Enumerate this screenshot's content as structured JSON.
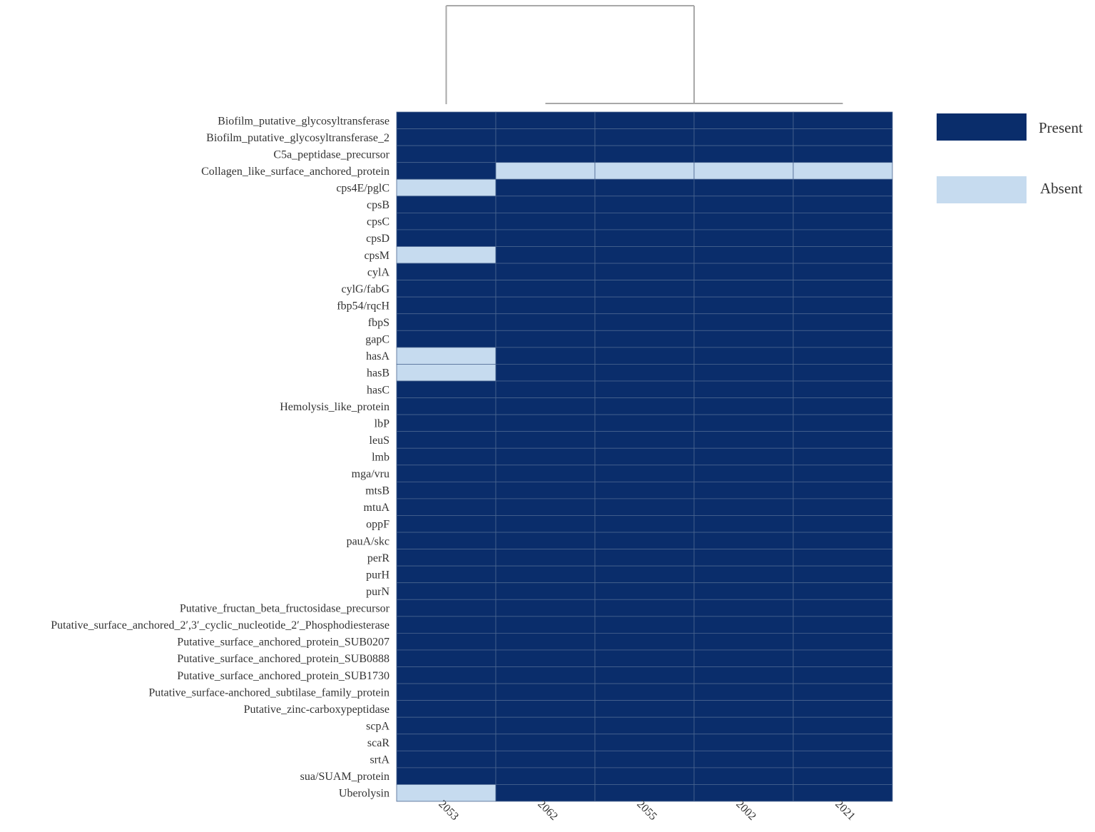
{
  "chart_data": {
    "type": "heatmap",
    "columns": [
      "2053",
      "2062",
      "2055",
      "2002",
      "2021"
    ],
    "rows": [
      "Biofilm_putative_glycosyltransferase",
      "Biofilm_putative_glycosyltransferase_2",
      "C5a_peptidase_precursor",
      "Collagen_like_surface_anchored_protein",
      "cps4E/pglC",
      "cpsB",
      "cpsC",
      "cpsD",
      "cpsM",
      "cylA",
      "cylG/fabG",
      "fbp54/rqcH",
      "fbpS",
      "gapC",
      "hasA",
      "hasB",
      "hasC",
      "Hemolysis_like_protein",
      "lbP",
      "leuS",
      "lmb",
      "mga/vru",
      "mtsB",
      "mtuA",
      "oppF",
      "pauA/skc",
      "perR",
      "purH",
      "purN",
      "Putative_fructan_beta_fructosidase_precursor",
      "Putative_surface_anchored_2′,3′_cyclic_nucleotide_2′_Phosphodiesterase",
      "Putative_surface_anchored_protein_SUB0207",
      "Putative_surface_anchored_protein_SUB0888",
      "Putative_surface_anchored_protein_SUB1730",
      "Putative_surface-anchored_subtilase_family_protein",
      "Putative_zinc-carboxypeptidase",
      "scpA",
      "scaR",
      "srtA",
      "sua/SUAM_protein",
      "Uberolysin"
    ],
    "values": [
      [
        1,
        1,
        1,
        1,
        1
      ],
      [
        1,
        1,
        1,
        1,
        1
      ],
      [
        1,
        1,
        1,
        1,
        1
      ],
      [
        1,
        0,
        0,
        0,
        0
      ],
      [
        0,
        1,
        1,
        1,
        1
      ],
      [
        1,
        1,
        1,
        1,
        1
      ],
      [
        1,
        1,
        1,
        1,
        1
      ],
      [
        1,
        1,
        1,
        1,
        1
      ],
      [
        0,
        1,
        1,
        1,
        1
      ],
      [
        1,
        1,
        1,
        1,
        1
      ],
      [
        1,
        1,
        1,
        1,
        1
      ],
      [
        1,
        1,
        1,
        1,
        1
      ],
      [
        1,
        1,
        1,
        1,
        1
      ],
      [
        1,
        1,
        1,
        1,
        1
      ],
      [
        0,
        1,
        1,
        1,
        1
      ],
      [
        0,
        1,
        1,
        1,
        1
      ],
      [
        1,
        1,
        1,
        1,
        1
      ],
      [
        1,
        1,
        1,
        1,
        1
      ],
      [
        1,
        1,
        1,
        1,
        1
      ],
      [
        1,
        1,
        1,
        1,
        1
      ],
      [
        1,
        1,
        1,
        1,
        1
      ],
      [
        1,
        1,
        1,
        1,
        1
      ],
      [
        1,
        1,
        1,
        1,
        1
      ],
      [
        1,
        1,
        1,
        1,
        1
      ],
      [
        1,
        1,
        1,
        1,
        1
      ],
      [
        1,
        1,
        1,
        1,
        1
      ],
      [
        1,
        1,
        1,
        1,
        1
      ],
      [
        1,
        1,
        1,
        1,
        1
      ],
      [
        1,
        1,
        1,
        1,
        1
      ],
      [
        1,
        1,
        1,
        1,
        1
      ],
      [
        1,
        1,
        1,
        1,
        1
      ],
      [
        1,
        1,
        1,
        1,
        1
      ],
      [
        1,
        1,
        1,
        1,
        1
      ],
      [
        1,
        1,
        1,
        1,
        1
      ],
      [
        1,
        1,
        1,
        1,
        1
      ],
      [
        1,
        1,
        1,
        1,
        1
      ],
      [
        1,
        1,
        1,
        1,
        1
      ],
      [
        1,
        1,
        1,
        1,
        1
      ],
      [
        1,
        1,
        1,
        1,
        1
      ],
      [
        1,
        1,
        1,
        1,
        1
      ],
      [
        0,
        1,
        1,
        1,
        1
      ]
    ],
    "legend": [
      {
        "label": "Present",
        "value": 1,
        "color": "#0a2d6b"
      },
      {
        "label": "Absent",
        "value": 0,
        "color": "#c6dbef"
      }
    ],
    "legend_position": "top-right",
    "column_dendrogram": true,
    "title": "",
    "xlabel": "",
    "ylabel": ""
  },
  "colors": {
    "present": "#0a2d6b",
    "absent": "#c6dbef",
    "cell_border": "#4a6590",
    "dendrogram": "#a8a8a8"
  }
}
